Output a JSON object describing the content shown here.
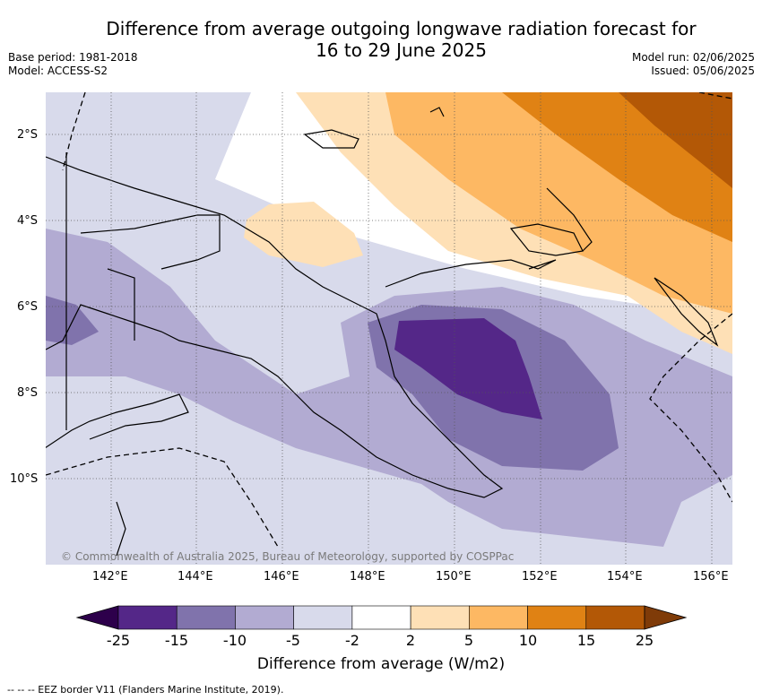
{
  "title_line1": "Difference from average outgoing longwave radiation forecast for",
  "title_line2": "16 to 29 June 2025",
  "meta_left": [
    "Base period: 1981-2018",
    "Model: ACCESS-S2"
  ],
  "meta_right": [
    "Model run: 02/06/2025",
    "Issued: 05/06/2025"
  ],
  "copyright": "© Commonwealth of Australia 2025, Bureau of Meteorology, supported by COSPPac",
  "lat_labels": [
    "2°S",
    "4°S",
    "6°S",
    "8°S",
    "10°S"
  ],
  "lon_labels": [
    "142°E",
    "144°E",
    "146°E",
    "148°E",
    "150°E",
    "152°E",
    "154°E",
    "156°E"
  ],
  "colorbar": {
    "label": "Difference from average (W/m2)",
    "ticks": [
      "-25",
      "-15",
      "-10",
      "-5",
      "-2",
      "2",
      "5",
      "10",
      "15",
      "25"
    ],
    "colors": [
      "#2d004b",
      "#542788",
      "#8073ac",
      "#b2abd2",
      "#d8daeb",
      "#ffffff",
      "#fee0b6",
      "#fdb863",
      "#e08214",
      "#b35806",
      "#7f3b08"
    ]
  },
  "footnote": "-- -- -- EEZ border V11 (Flanders Marine Institute, 2019)."
}
